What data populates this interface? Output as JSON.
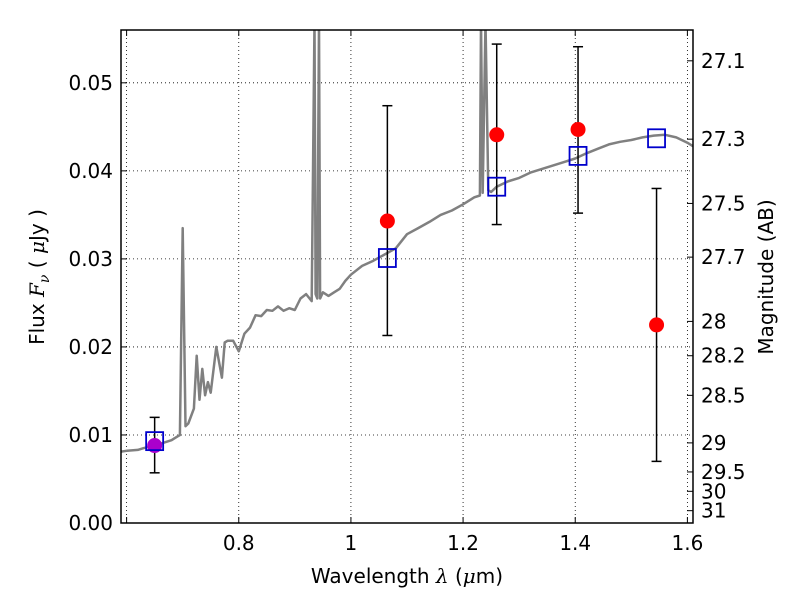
{
  "chart_data": {
    "type": "scatter",
    "xlabel": "Wavelength  λ (μm)",
    "ylabel": "Flux  Fν ( μJy )",
    "ylabel_right": "Magnitude (AB)",
    "xlim": [
      0.59,
      1.61
    ],
    "ylim": [
      0.0,
      0.056
    ],
    "grid": true,
    "x_ticks": [
      {
        "v": 0.6,
        "label": ""
      },
      {
        "v": 0.8,
        "label": "0.8"
      },
      {
        "v": 1.0,
        "label": "1"
      },
      {
        "v": 1.2,
        "label": "1.2"
      },
      {
        "v": 1.4,
        "label": "1.4"
      },
      {
        "v": 1.6,
        "label": "1.6"
      }
    ],
    "y_ticks": [
      {
        "v": 0.0,
        "label": "0.00"
      },
      {
        "v": 0.01,
        "label": "0.01"
      },
      {
        "v": 0.02,
        "label": "0.02"
      },
      {
        "v": 0.03,
        "label": "0.03"
      },
      {
        "v": 0.04,
        "label": "0.04"
      },
      {
        "v": 0.05,
        "label": "0.05"
      }
    ],
    "right_ticks": [
      {
        "flux": 0.0525,
        "label": "27.1"
      },
      {
        "flux": 0.0436,
        "label": "27.3"
      },
      {
        "flux": 0.0363,
        "label": "27.5"
      },
      {
        "flux": 0.0302,
        "label": "27.7"
      },
      {
        "flux": 0.0229,
        "label": "28"
      },
      {
        "flux": 0.019,
        "label": "28.2"
      },
      {
        "flux": 0.0145,
        "label": "28.5"
      },
      {
        "flux": 0.0091,
        "label": "29"
      },
      {
        "flux": 0.0058,
        "label": "29.5"
      },
      {
        "flux": 0.0036,
        "label": "30"
      },
      {
        "flux": 0.0014,
        "label": "31"
      }
    ],
    "model_spectrum": {
      "color": "#808080",
      "x": [
        0.59,
        0.6,
        0.62,
        0.63,
        0.65,
        0.66,
        0.68,
        0.69,
        0.695,
        0.7,
        0.705,
        0.71,
        0.72,
        0.725,
        0.73,
        0.735,
        0.74,
        0.745,
        0.75,
        0.76,
        0.77,
        0.775,
        0.78,
        0.79,
        0.8,
        0.81,
        0.82,
        0.83,
        0.84,
        0.85,
        0.86,
        0.87,
        0.88,
        0.89,
        0.9,
        0.91,
        0.92,
        0.93,
        0.935,
        0.937,
        0.94,
        0.943,
        0.945,
        0.95,
        0.96,
        0.97,
        0.98,
        0.99,
        1.0,
        1.02,
        1.04,
        1.06,
        1.08,
        1.1,
        1.12,
        1.14,
        1.16,
        1.18,
        1.2,
        1.21,
        1.22,
        1.23,
        1.232,
        1.235,
        1.24,
        1.245,
        1.25,
        1.26,
        1.28,
        1.3,
        1.32,
        1.34,
        1.36,
        1.38,
        1.4,
        1.42,
        1.44,
        1.46,
        1.48,
        1.5,
        1.52,
        1.54,
        1.56,
        1.58,
        1.6,
        1.61
      ],
      "y": [
        0.0081,
        0.0082,
        0.0083,
        0.0085,
        0.0088,
        0.009,
        0.0094,
        0.0098,
        0.01,
        0.0335,
        0.011,
        0.0113,
        0.013,
        0.019,
        0.014,
        0.0175,
        0.0145,
        0.016,
        0.0148,
        0.02,
        0.0165,
        0.0205,
        0.0207,
        0.0207,
        0.0195,
        0.0215,
        0.0222,
        0.0236,
        0.0235,
        0.0242,
        0.0241,
        0.0246,
        0.0241,
        0.0244,
        0.0242,
        0.0255,
        0.026,
        0.0252,
        0.057,
        0.026,
        0.0255,
        0.057,
        0.0255,
        0.0262,
        0.0258,
        0.0262,
        0.0266,
        0.0275,
        0.0282,
        0.0292,
        0.0298,
        0.0305,
        0.0312,
        0.0328,
        0.0335,
        0.0342,
        0.035,
        0.0355,
        0.0362,
        0.0366,
        0.037,
        0.0372,
        0.057,
        0.0375,
        0.0569,
        0.0378,
        0.0376,
        0.0382,
        0.0388,
        0.0392,
        0.0398,
        0.0402,
        0.0406,
        0.041,
        0.0414,
        0.042,
        0.0425,
        0.043,
        0.0433,
        0.0435,
        0.0438,
        0.044,
        0.0441,
        0.0438,
        0.0432,
        0.0428
      ]
    },
    "observed": {
      "color": "#ff0000",
      "points": [
        {
          "x": 0.65,
          "y": 0.0088,
          "err_low": 0.0057,
          "err_high": 0.012,
          "color": "#aa00cc"
        },
        {
          "x": 1.065,
          "y": 0.0343,
          "err_low": 0.0213,
          "err_high": 0.0474
        },
        {
          "x": 1.26,
          "y": 0.0441,
          "err_low": 0.0339,
          "err_high": 0.0544
        },
        {
          "x": 1.405,
          "y": 0.0447,
          "err_low": 0.0352,
          "err_high": 0.0541
        },
        {
          "x": 1.545,
          "y": 0.0225,
          "err_low": 0.007,
          "err_high": 0.038
        }
      ]
    },
    "model_photometry": {
      "color": "#0000cc",
      "points": [
        {
          "x": 0.65,
          "y": 0.0093
        },
        {
          "x": 1.065,
          "y": 0.0301
        },
        {
          "x": 1.26,
          "y": 0.0382
        },
        {
          "x": 1.405,
          "y": 0.0417
        },
        {
          "x": 1.545,
          "y": 0.0437
        }
      ]
    },
    "errorbar_color": "#000000"
  }
}
